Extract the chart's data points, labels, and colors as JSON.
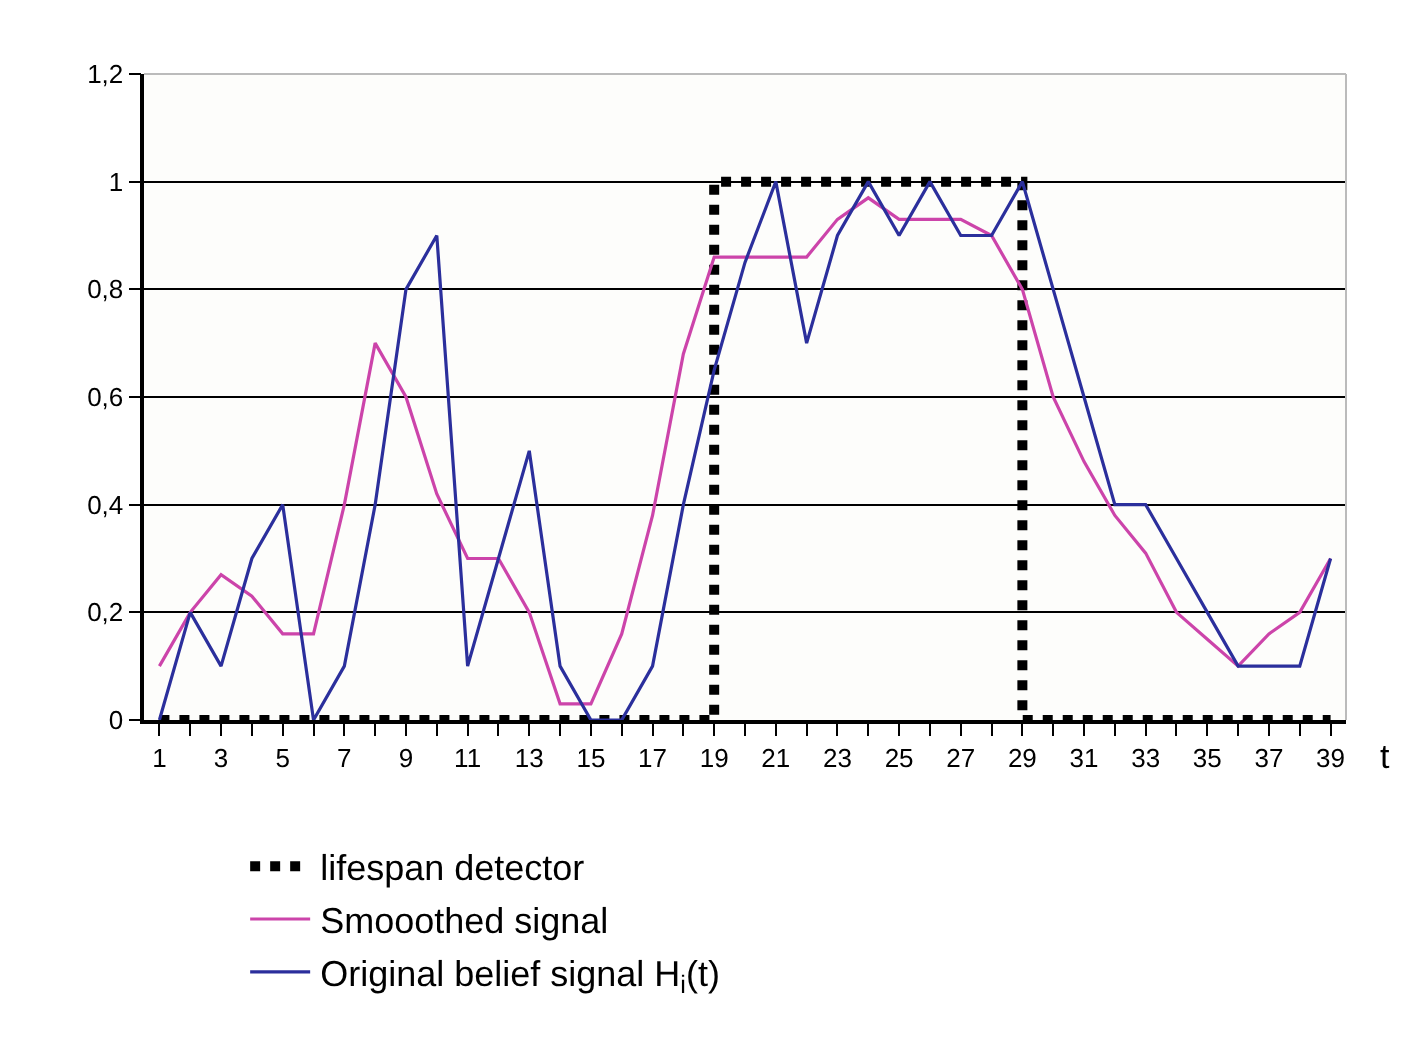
{
  "chart_data": {
    "type": "line",
    "xlabel": "t",
    "x": [
      1,
      2,
      3,
      4,
      5,
      6,
      7,
      8,
      9,
      10,
      11,
      12,
      13,
      14,
      15,
      16,
      17,
      18,
      19,
      20,
      21,
      22,
      23,
      24,
      25,
      26,
      27,
      28,
      29,
      30,
      31,
      32,
      33,
      34,
      35,
      36,
      37,
      38,
      39
    ],
    "xlim": [
      0.5,
      39.5
    ],
    "xticks": [
      1,
      {
        "value": 2,
        "label": null
      },
      3,
      {
        "value": 4,
        "label": null
      },
      5,
      {
        "value": 6,
        "label": null
      },
      7,
      {
        "value": 8,
        "label": null
      },
      9,
      {
        "value": 10,
        "label": null
      },
      11,
      {
        "value": 12,
        "label": null
      },
      13,
      {
        "value": 14,
        "label": null
      },
      15,
      {
        "value": 16,
        "label": null
      },
      17,
      {
        "value": 18,
        "label": null
      },
      19,
      {
        "value": 20,
        "label": null
      },
      21,
      {
        "value": 22,
        "label": null
      },
      23,
      {
        "value": 24,
        "label": null
      },
      25,
      {
        "value": 26,
        "label": null
      },
      27,
      {
        "value": 28,
        "label": null
      },
      29,
      {
        "value": 30,
        "label": null
      },
      31,
      {
        "value": 32,
        "label": null
      },
      33,
      {
        "value": 34,
        "label": null
      },
      35,
      {
        "value": 36,
        "label": null
      },
      37,
      {
        "value": 38,
        "label": null
      },
      39
    ],
    "ylim": [
      0,
      1.2
    ],
    "yticks": [
      0,
      {
        "value": 0.2,
        "label": "0,2"
      },
      {
        "value": 0.4,
        "label": "0,4"
      },
      {
        "value": 0.6,
        "label": "0,6"
      },
      {
        "value": 0.8,
        "label": "0,8"
      },
      1,
      {
        "value": 1.2,
        "label": "1,2"
      }
    ],
    "grid": "y",
    "legend": "bottom",
    "marker": "none",
    "series": [
      {
        "name": "lifespan detector",
        "color": "#000000",
        "line_style": "dotted",
        "x": [
          1,
          19,
          19,
          29,
          29,
          39
        ],
        "values": [
          0,
          0,
          1,
          1,
          0,
          0
        ]
      },
      {
        "name": "Smooothed signal",
        "color": "#cc44aa",
        "line_style": "solid",
        "values": [
          0.1,
          0.2,
          0.27,
          0.23,
          0.16,
          0.16,
          0.4,
          0.7,
          0.6,
          0.42,
          0.3,
          0.3,
          0.2,
          0.03,
          0.03,
          0.16,
          0.38,
          0.68,
          0.86,
          0.86,
          0.86,
          0.86,
          0.93,
          0.97,
          0.93,
          0.93,
          0.93,
          0.9,
          0.8,
          0.6,
          0.48,
          0.38,
          0.31,
          0.2,
          0.15,
          0.1,
          0.16,
          0.2,
          0.3
        ]
      },
      {
        "name": "Original belief signal H$_{i}$(t)",
        "color": "#2b2f9c",
        "line_style": "solid",
        "values": [
          0,
          0.2,
          0.1,
          0.3,
          0.4,
          0,
          0.1,
          0.4,
          0.8,
          0.9,
          0.1,
          0.3,
          0.5,
          0.1,
          0,
          0,
          0.1,
          0.4,
          0.65,
          0.85,
          1,
          0.7,
          0.9,
          1,
          0.9,
          1,
          0.9,
          0.9,
          1,
          0.8,
          0.6,
          0.4,
          0.4,
          0.3,
          0.2,
          0.1,
          0.1,
          0.1,
          0.3
        ]
      }
    ]
  }
}
